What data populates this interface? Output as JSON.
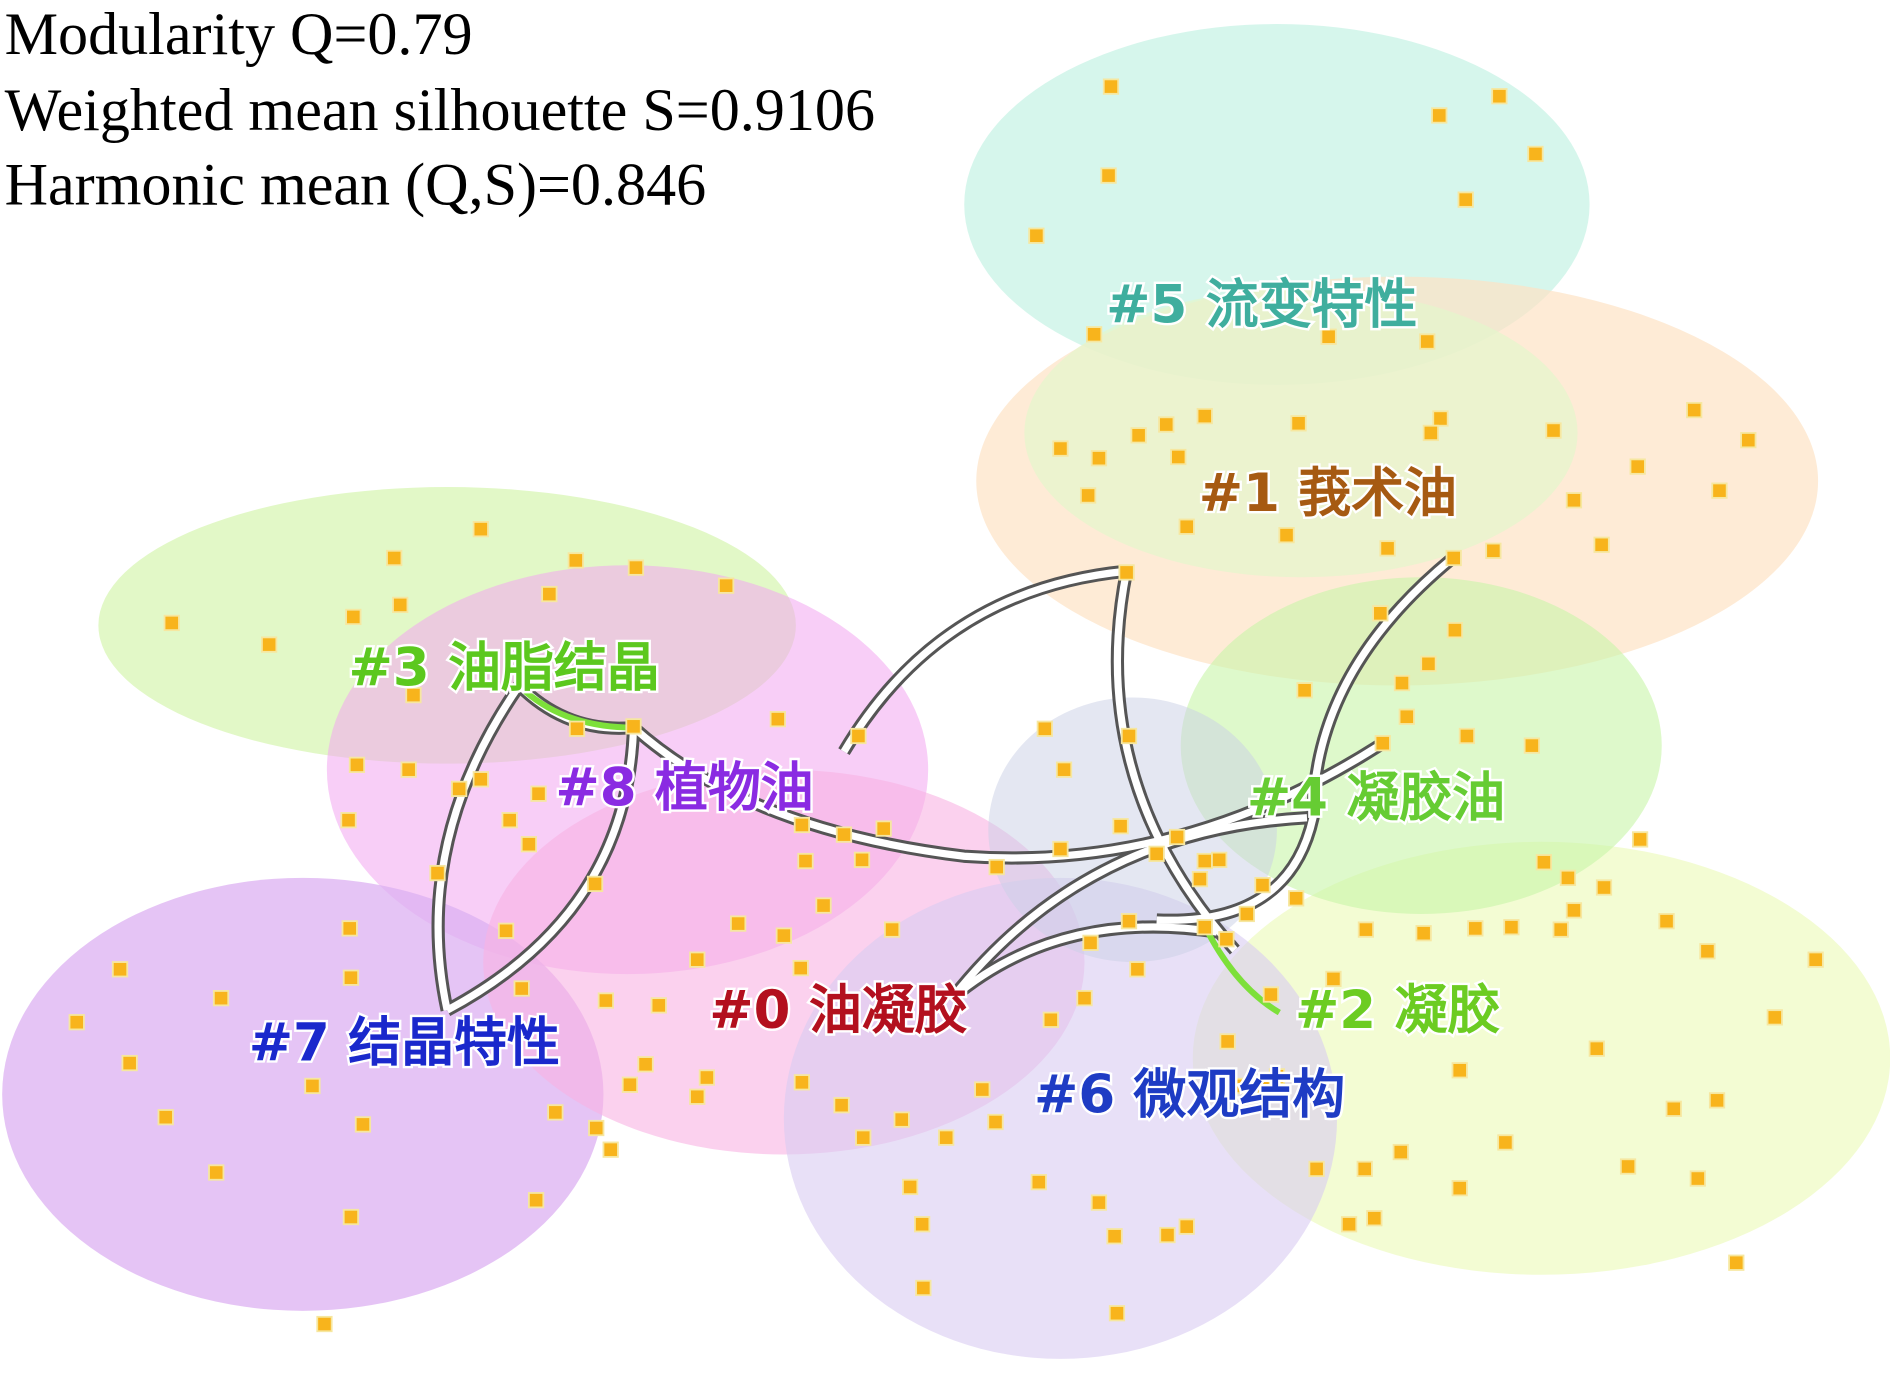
{
  "header": {
    "lines": [
      "Modularity Q=0.79",
      "Weighted mean silhouette S=0.9106",
      "Harmonic mean (Q,S)=0.846"
    ]
  },
  "clusters": [
    {
      "label": "#5 流变特性",
      "color": "#3fae9e"
    },
    {
      "label": "#1 莪术油",
      "color": "#a65a12"
    },
    {
      "label": "#3 油脂结晶",
      "color": "#5cc81e"
    },
    {
      "label": "#8 植物油",
      "color": "#8a2be2"
    },
    {
      "label": "#4 凝胶油",
      "color": "#66cc33"
    },
    {
      "label": "#0 油凝胶",
      "color": "#b3101e"
    },
    {
      "label": "#7 结晶特性",
      "color": "#1a28cc"
    },
    {
      "label": "#2 凝胶",
      "color": "#6ccc22"
    },
    {
      "label": "#6 微观结构",
      "color": "#1e3cc4"
    }
  ]
}
